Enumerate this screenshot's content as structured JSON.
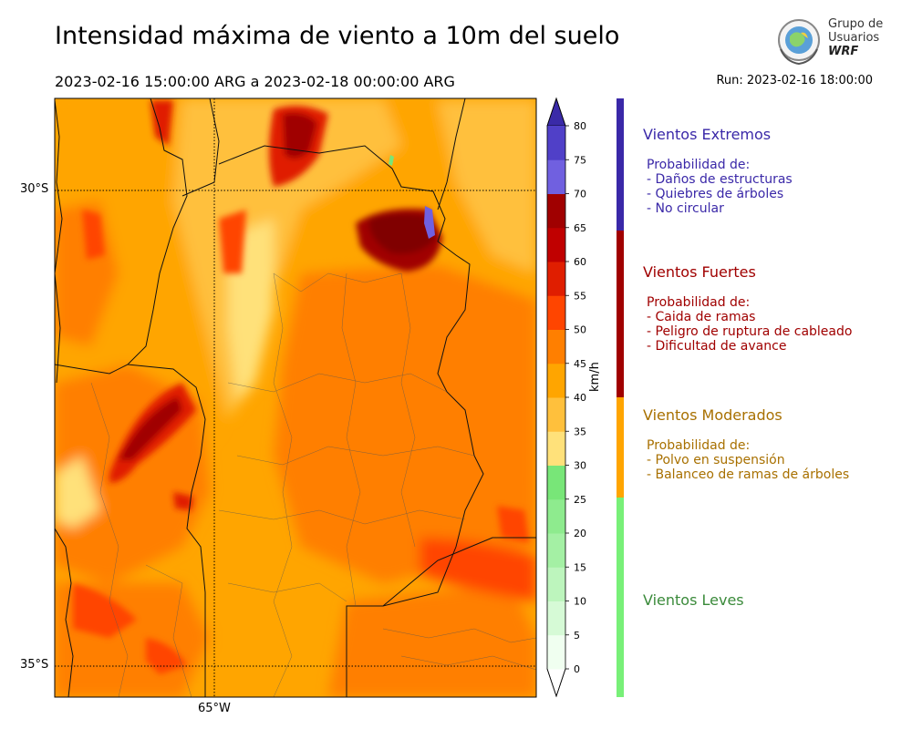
{
  "header": {
    "title": "Intensidad máxima de viento a 10m del suelo",
    "period": "2023-02-16 15:00:00 ARG  a  2023-02-18 00:00:00 ARG",
    "run": "Run: 2023-02-16 18:00:00"
  },
  "logo": {
    "line1": "Grupo de",
    "line2": "Usuarios",
    "line3": "WRF"
  },
  "map": {
    "lat_labels": [
      "30°S",
      "35°S"
    ],
    "lon_labels": [
      "65°W"
    ]
  },
  "colorbar": {
    "units": "km/h",
    "ticks": [
      "0",
      "5",
      "10",
      "15",
      "20",
      "25",
      "30",
      "35",
      "40",
      "45",
      "50",
      "55",
      "60",
      "65",
      "70",
      "75",
      "80"
    ],
    "colors": [
      "#f0fff0",
      "#d6fad6",
      "#bdf5bd",
      "#a4f0a4",
      "#8eeb8e",
      "#78e678",
      "#ffe17a",
      "#ffc03c",
      "#ffa500",
      "#ff7f00",
      "#ff4500",
      "#e01e00",
      "#c00000",
      "#a00000",
      "#7060e0",
      "#5040c8",
      "#4030b0"
    ],
    "arrow_low": "#ffffff",
    "arrow_high": "#3a2aa8"
  },
  "categories": [
    {
      "title": "Vientos Extremos",
      "color": "#3a28a8",
      "intro": "Probabilidad de:",
      "items": [
        "- Daños de estructuras",
        "- Quiebres de árboles",
        "- No circular"
      ]
    },
    {
      "title": "Vientos Fuertes",
      "color": "#a00000",
      "intro": "Probabilidad de:",
      "items": [
        "- Caida de ramas",
        "- Peligro de ruptura de cableado",
        "- Dificultad de avance"
      ]
    },
    {
      "title": "Vientos Moderados",
      "color": "#a87000",
      "intro": "Probabilidad de:",
      "items": [
        "- Polvo en suspensión",
        "- Balanceo de ramas de árboles"
      ]
    },
    {
      "title": "Vientos Leves",
      "color": "#3a8a3a",
      "intro": "",
      "items": []
    }
  ],
  "category_bar_colors": [
    "#3a28a8",
    "#a00000",
    "#ffa500",
    "#78f078"
  ]
}
